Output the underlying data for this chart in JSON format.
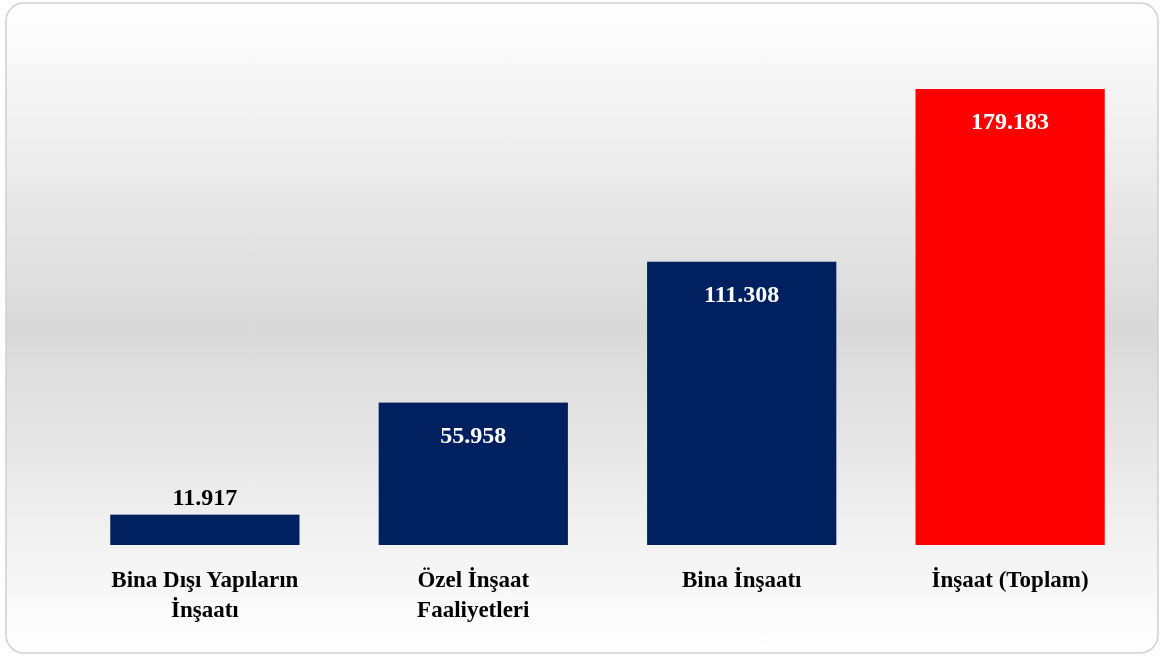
{
  "chart_data": {
    "type": "bar",
    "relative": false,
    "categories": [
      "Bina Dışı Yapıların İnşaatı",
      "Özel İnşaat Faaliyetleri",
      "Bina İnşaatı",
      "İnşaat (Toplam)"
    ],
    "values": [
      11917,
      55958,
      111308,
      179183
    ],
    "value_labels": [
      "11.917",
      "55.958",
      "111.308",
      "179.183"
    ],
    "colors": [
      "#002060",
      "#002060",
      "#002060",
      "#ff0000"
    ]
  }
}
